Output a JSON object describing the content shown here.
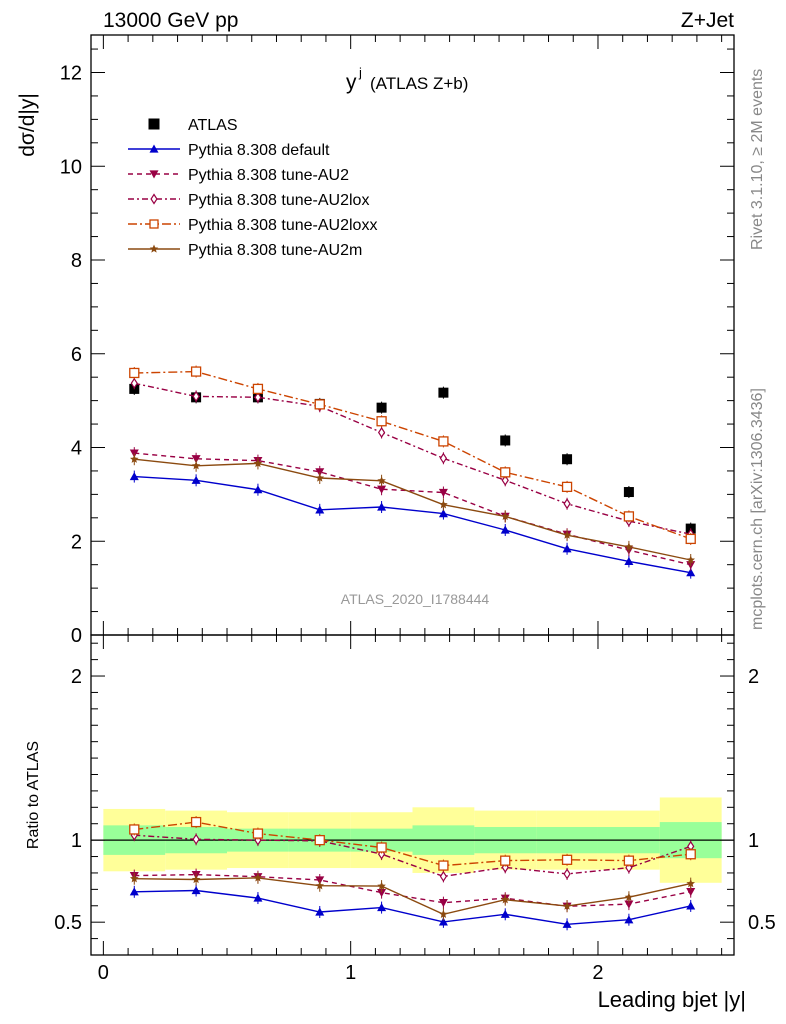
{
  "header": {
    "left": "13000 GeV pp",
    "right": "Z+Jet"
  },
  "side_labels": {
    "rivet": "Rivet 3.1.10, ≥ 2M events",
    "mcplots": "mcplots.cern.ch [arXiv:1306.3436]"
  },
  "plot_title": {
    "main": "y",
    "superscript": "j",
    "sub": "(ATLAS Z+b)"
  },
  "watermark": "ATLAS_2020_I1788444",
  "chart_data": [
    {
      "type": "scatter",
      "panel": "main",
      "ylabel": "dσ/d|y|",
      "xlabel": "",
      "xlim": [
        -0.05,
        2.55
      ],
      "ylim": [
        0,
        12.8
      ],
      "yticks": [
        0,
        2,
        4,
        6,
        8,
        10,
        12
      ],
      "ytick_labels": [
        "0",
        "2",
        "4",
        "6",
        "8",
        "10",
        "12"
      ],
      "legend_position": "top-left",
      "x": [
        0.125,
        0.375,
        0.625,
        0.875,
        1.125,
        1.375,
        1.625,
        1.875,
        2.125,
        2.375
      ],
      "series": [
        {
          "name": "ATLAS",
          "color": "#000000",
          "marker": "filled-square",
          "line": "none",
          "values": [
            5.25,
            5.07,
            5.07,
            4.93,
            4.85,
            5.17,
            4.15,
            3.75,
            3.05,
            2.27
          ]
        },
        {
          "name": "Pythia 8.308 default",
          "color": "#0000cc",
          "marker": "filled-triangle-up",
          "line": "solid",
          "values": [
            3.38,
            3.3,
            3.1,
            2.67,
            2.73,
            2.59,
            2.24,
            1.84,
            1.57,
            1.33
          ]
        },
        {
          "name": "Pythia 8.308 tune-AU2",
          "color": "#990044",
          "marker": "filled-triangle-down",
          "line": "dashed",
          "values": [
            3.88,
            3.76,
            3.72,
            3.48,
            3.11,
            3.04,
            2.53,
            2.15,
            1.81,
            1.5
          ]
        },
        {
          "name": "Pythia 8.308 tune-AU2lox",
          "color": "#990044",
          "marker": "open-diamond",
          "line": "dash-dot",
          "values": [
            5.37,
            5.09,
            5.07,
            4.88,
            4.32,
            3.77,
            3.3,
            2.8,
            2.43,
            2.15
          ]
        },
        {
          "name": "Pythia 8.308 tune-AU2loxx",
          "color": "#cc4400",
          "marker": "open-square",
          "line": "dash-dot-long",
          "values": [
            5.59,
            5.62,
            5.25,
            4.92,
            4.56,
            4.13,
            3.47,
            3.16,
            2.53,
            2.05
          ]
        },
        {
          "name": "Pythia 8.308 tune-AU2m",
          "color": "#8b4a10",
          "marker": "filled-star",
          "line": "solid",
          "values": [
            3.75,
            3.61,
            3.66,
            3.35,
            3.29,
            2.78,
            2.53,
            2.13,
            1.88,
            1.6
          ]
        }
      ]
    },
    {
      "type": "scatter",
      "panel": "ratio",
      "ylabel": "Ratio to ATLAS",
      "xlabel": "Leading bjet |y|",
      "xlim": [
        -0.05,
        2.55
      ],
      "ylim": [
        0.3,
        2.25
      ],
      "yticks": [
        0.5,
        1,
        2
      ],
      "ytick_labels": [
        "0.5",
        "1",
        "2"
      ],
      "xticks": [
        0,
        1,
        2
      ],
      "xtick_labels": [
        "0",
        "1",
        "2"
      ],
      "bands": {
        "bin_edges": [
          0,
          0.25,
          0.5,
          0.75,
          1.0,
          1.25,
          1.5,
          1.75,
          2.0,
          2.25,
          2.5
        ],
        "inner": {
          "color": "#99ff99",
          "lo": [
            0.91,
            0.92,
            0.93,
            0.93,
            0.93,
            0.91,
            0.92,
            0.92,
            0.92,
            0.89
          ],
          "hi": [
            1.09,
            1.08,
            1.07,
            1.07,
            1.07,
            1.09,
            1.08,
            1.08,
            1.08,
            1.11
          ]
        },
        "outer": {
          "color": "#ffff99",
          "lo": [
            0.81,
            0.82,
            0.83,
            0.83,
            0.83,
            0.8,
            0.82,
            0.82,
            0.82,
            0.74
          ],
          "hi": [
            1.19,
            1.18,
            1.17,
            1.17,
            1.17,
            1.2,
            1.18,
            1.18,
            1.18,
            1.26
          ]
        }
      },
      "reference_line": 1,
      "x": [
        0.125,
        0.375,
        0.625,
        0.875,
        1.125,
        1.375,
        1.625,
        1.875,
        2.125,
        2.375
      ],
      "series": [
        {
          "name": "Pythia 8.308 default",
          "color": "#0000cc",
          "marker": "filled-triangle-up",
          "line": "solid",
          "values": [
            0.685,
            0.693,
            0.647,
            0.562,
            0.589,
            0.502,
            0.548,
            0.487,
            0.515,
            0.599
          ]
        },
        {
          "name": "Pythia 8.308 tune-AU2",
          "color": "#990044",
          "marker": "filled-triangle-down",
          "line": "dashed",
          "values": [
            0.784,
            0.79,
            0.777,
            0.757,
            0.68,
            0.619,
            0.646,
            0.597,
            0.61,
            0.686
          ]
        },
        {
          "name": "Pythia 8.308 tune-AU2lox",
          "color": "#990044",
          "marker": "open-diamond",
          "line": "dash-dot",
          "values": [
            1.03,
            1.005,
            1.0,
            0.995,
            0.915,
            0.779,
            0.834,
            0.794,
            0.832,
            0.962
          ]
        },
        {
          "name": "Pythia 8.308 tune-AU2loxx",
          "color": "#cc4400",
          "marker": "open-square",
          "line": "dash-dot-long",
          "values": [
            1.065,
            1.11,
            1.04,
            1.0,
            0.955,
            0.845,
            0.875,
            0.88,
            0.875,
            0.914
          ]
        },
        {
          "name": "Pythia 8.308 tune-AU2m",
          "color": "#8b4a10",
          "marker": "filled-star",
          "line": "solid",
          "values": [
            0.765,
            0.76,
            0.77,
            0.722,
            0.72,
            0.548,
            0.637,
            0.598,
            0.652,
            0.735
          ]
        }
      ]
    }
  ]
}
